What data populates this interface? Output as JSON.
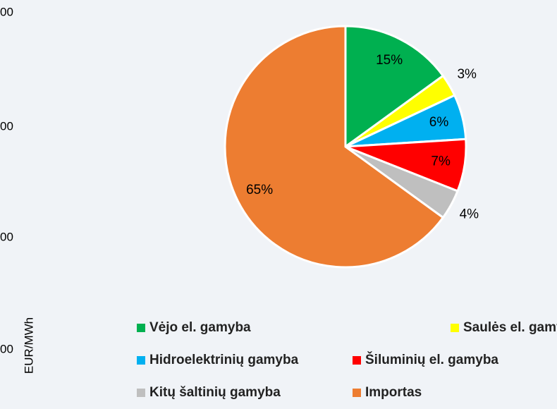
{
  "chart_data": {
    "type": "pie",
    "categories": [
      "Vėjo el. gamyba",
      "Saulės el. gamyba",
      "Hidroelektrinių gamyba",
      "Šiluminių el. gamyba",
      "Kitų  šaltinių gamyba",
      "Importas"
    ],
    "values": [
      15,
      3,
      6,
      7,
      4,
      65
    ],
    "value_labels": [
      "15%",
      "3%",
      "6%",
      "7%",
      "4%",
      "65%"
    ],
    "colors": [
      "#00b050",
      "#ffff00",
      "#00b0f0",
      "#ff0000",
      "#bfbfbf",
      "#ed7d31"
    ],
    "legend": "bottom"
  },
  "background": {
    "tick_labels": [
      "00",
      "00",
      "00",
      "00"
    ],
    "axis_label": "EUR/MWh"
  }
}
